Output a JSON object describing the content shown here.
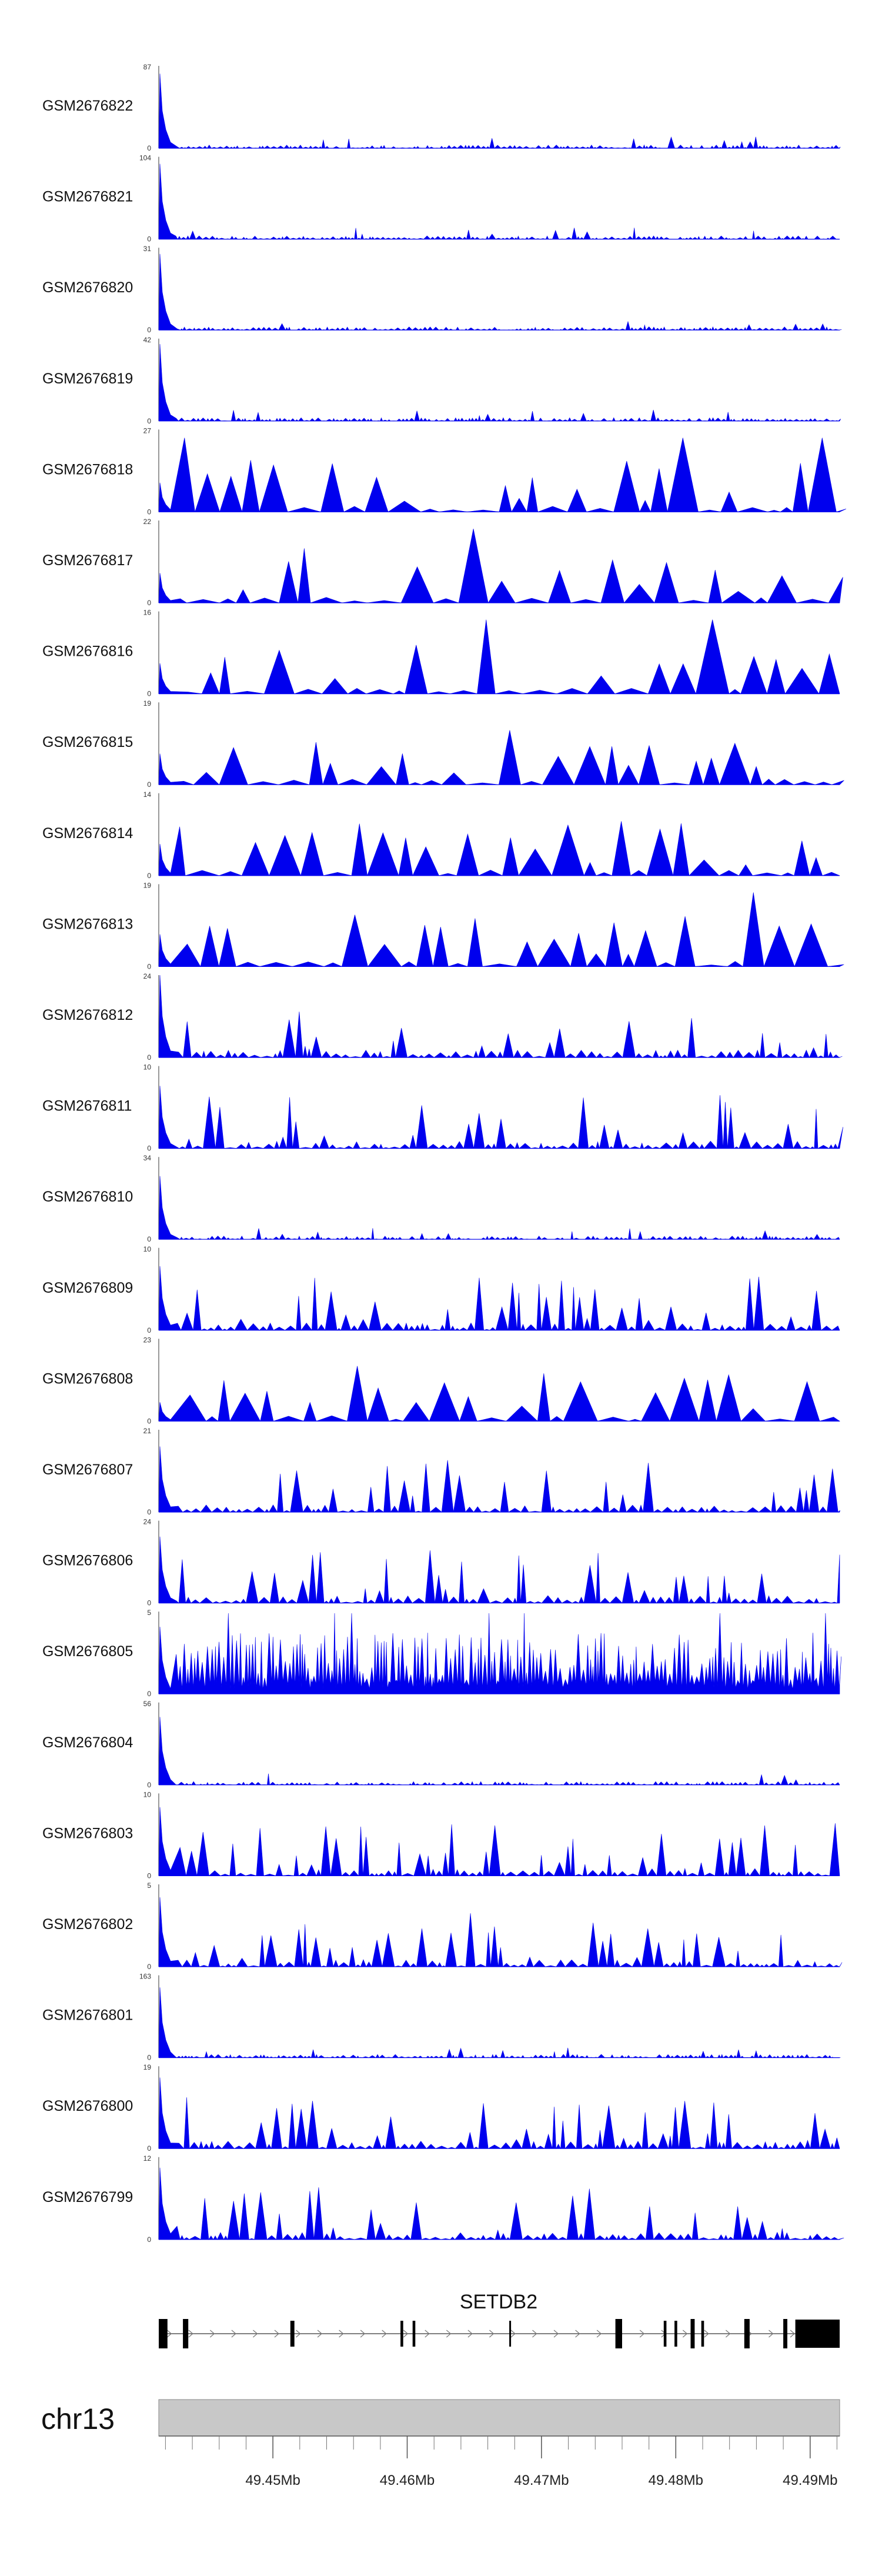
{
  "chart_data": {
    "type": "area",
    "chromosome": "chr13",
    "gene": "SETDB2",
    "colors": {
      "signal": "#0000ee",
      "ideogram": "#c8c8c8",
      "gene": "#000000"
    },
    "x_range_mb": [
      49.4415,
      49.4922
    ],
    "tracks": [
      {
        "name": "GSM2676822",
        "ymax": "87",
        "ymin": "0",
        "max": 87
      },
      {
        "name": "GSM2676821",
        "ymax": "104",
        "ymin": "0",
        "max": 104
      },
      {
        "name": "GSM2676820",
        "ymax": "31",
        "ymin": "0",
        "max": 31
      },
      {
        "name": "GSM2676819",
        "ymax": "42",
        "ymin": "0",
        "max": 42
      },
      {
        "name": "GSM2676818",
        "ymax": "27",
        "ymin": "0",
        "max": 27
      },
      {
        "name": "GSM2676817",
        "ymax": "22",
        "ymin": "0",
        "max": 22
      },
      {
        "name": "GSM2676816",
        "ymax": "16",
        "ymin": "0",
        "max": 16
      },
      {
        "name": "GSM2676815",
        "ymax": "19",
        "ymin": "0",
        "max": 19
      },
      {
        "name": "GSM2676814",
        "ymax": "14",
        "ymin": "0",
        "max": 14
      },
      {
        "name": "GSM2676813",
        "ymax": "19",
        "ymin": "0",
        "max": 19
      },
      {
        "name": "GSM2676812",
        "ymax": "24",
        "ymin": "0",
        "max": 24
      },
      {
        "name": "GSM2676811",
        "ymax": "10",
        "ymin": "0",
        "max": 10
      },
      {
        "name": "GSM2676810",
        "ymax": "34",
        "ymin": "0",
        "max": 34
      },
      {
        "name": "GSM2676809",
        "ymax": "10",
        "ymin": "0",
        "max": 10
      },
      {
        "name": "GSM2676808",
        "ymax": "23",
        "ymin": "0",
        "max": 23
      },
      {
        "name": "GSM2676807",
        "ymax": "21",
        "ymin": "0",
        "max": 21
      },
      {
        "name": "GSM2676806",
        "ymax": "24",
        "ymin": "0",
        "max": 24
      },
      {
        "name": "GSM2676805",
        "ymax": "5",
        "ymin": "0",
        "max": 5
      },
      {
        "name": "GSM2676804",
        "ymax": "56",
        "ymin": "0",
        "max": 56
      },
      {
        "name": "GSM2676803",
        "ymax": "10",
        "ymin": "0",
        "max": 10
      },
      {
        "name": "GSM2676802",
        "ymax": "5",
        "ymin": "0",
        "max": 5
      },
      {
        "name": "GSM2676801",
        "ymax": "163",
        "ymin": "0",
        "max": 163
      },
      {
        "name": "GSM2676800",
        "ymax": "19",
        "ymin": "0",
        "max": 19
      },
      {
        "name": "GSM2676799",
        "ymax": "12",
        "ymin": "0",
        "max": 12
      }
    ],
    "exons_mb": [
      [
        49.4415,
        49.44215
      ],
      [
        49.4433,
        49.4437
      ],
      [
        49.4513,
        49.4516
      ],
      [
        49.4595,
        49.4597
      ],
      [
        49.4604,
        49.4606
      ],
      [
        49.4676,
        49.4677
      ],
      [
        49.4755,
        49.476
      ],
      [
        49.4791,
        49.4793
      ],
      [
        49.4799,
        49.4801
      ],
      [
        49.4811,
        49.4814
      ],
      [
        49.4819,
        49.4821
      ],
      [
        49.4851,
        49.4855
      ],
      [
        49.488,
        49.4883
      ],
      [
        49.4889,
        49.4922
      ]
    ],
    "axis": {
      "major_ticks": [
        {
          "value": 49.45,
          "label": "49.45Mb"
        },
        {
          "value": 49.46,
          "label": "49.46Mb"
        },
        {
          "value": 49.47,
          "label": "49.47Mb"
        },
        {
          "value": 49.48,
          "label": "49.48Mb"
        },
        {
          "value": 49.49,
          "label": "49.49Mb"
        }
      ],
      "minor_step_mb": 0.002
    }
  }
}
